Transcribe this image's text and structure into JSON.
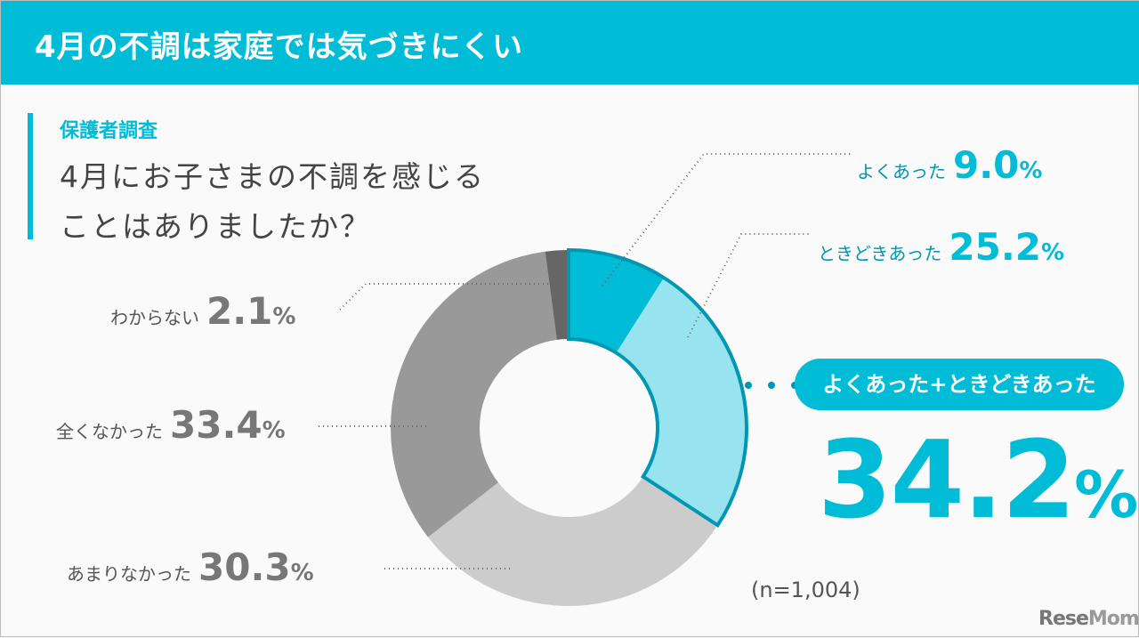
{
  "header": {
    "title": "4月の不調は家庭では気づきにくい"
  },
  "subtitle": "保護者調査",
  "question": [
    "4月にお子さまの不調を感じる",
    "ことはありましたか？"
  ],
  "chart_data": {
    "type": "pie",
    "donut": true,
    "categories": [
      "よくあった",
      "ときどきあった",
      "あまりなかった",
      "全くなかった",
      "わからない"
    ],
    "values": [
      9.0,
      25.2,
      30.3,
      33.4,
      2.1
    ],
    "value_labels": [
      "9.0",
      "25.2",
      "30.3",
      "33.4",
      "2.1"
    ],
    "unit": "%",
    "colors": [
      "#00bcd6",
      "#97e3ef",
      "#cccccc",
      "#999999",
      "#666666"
    ],
    "highlight_color": "#0097b2",
    "combined": {
      "label": "よくあった+ときどきあった",
      "value": "34.2",
      "unit": "%"
    },
    "note": "(n=1,004)"
  },
  "logo": "ReseMom"
}
